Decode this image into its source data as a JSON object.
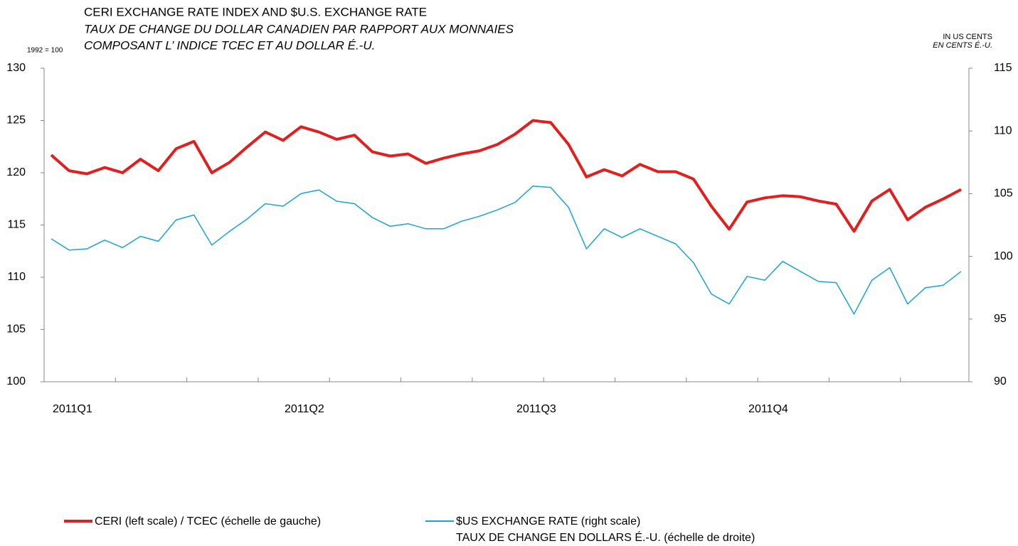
{
  "chart_data": {
    "type": "line",
    "title": "CERI EXCHANGE RATE INDEX AND $U.S. EXCHANGE RATE",
    "subtitle": [
      "TAUX DE CHANGE DU DOLLAR CANADIEN PAR RAPPORT AUX MONNAIES",
      "COMPOSANT L’ INDICE TCEC ET AU DOLLAR É.-U."
    ],
    "ylabel": "1992 = 100",
    "y2label": [
      "IN US CENTS",
      "EN CENTS É.-U."
    ],
    "categories": [
      "2011Q1",
      null,
      null,
      null,
      null,
      null,
      null,
      null,
      null,
      null,
      null,
      null,
      null,
      "2011Q2",
      null,
      null,
      null,
      null,
      null,
      null,
      null,
      null,
      null,
      null,
      null,
      null,
      "2011Q3",
      null,
      null,
      null,
      null,
      null,
      null,
      null,
      null,
      null,
      null,
      null,
      null,
      "2011Q4",
      null,
      null,
      null,
      null,
      null,
      null,
      null,
      null,
      null,
      null,
      null,
      null
    ],
    "series": [
      {
        "name": "CERI (left scale) / TCEC (échelle de gauche)",
        "color": "#e0201f",
        "width": 4,
        "values": [
          121.7,
          120.2,
          119.9,
          120.5,
          120.0,
          121.3,
          120.2,
          122.3,
          123.0,
          120.0,
          121.0,
          122.5,
          123.9,
          123.1,
          124.4,
          123.9,
          123.2,
          123.6,
          122.0,
          121.6,
          121.8,
          120.9,
          121.4,
          121.8,
          122.1,
          122.7,
          123.7,
          125.0,
          124.8,
          122.7,
          119.6,
          120.3,
          119.7,
          120.8,
          120.1,
          120.1,
          119.4,
          116.8,
          114.6,
          117.2,
          117.6,
          117.8,
          117.7,
          117.3,
          117.0,
          114.4,
          117.3,
          118.4,
          115.5,
          116.7,
          117.5,
          118.4
        ]
      },
      {
        "name": "$US EXCHANGE RATE (right scale)\nTAUX DE CHANGE EN DOLLARS É.-U. (échelle de droite)",
        "color": "#1aa3d6",
        "width": 1.5,
        "axis": "y2",
        "values": [
          101.4,
          100.5,
          100.6,
          101.3,
          100.7,
          101.6,
          101.2,
          102.9,
          103.3,
          100.9,
          102.0,
          103.0,
          104.2,
          104.0,
          105.0,
          105.3,
          104.4,
          104.2,
          103.1,
          102.4,
          102.6,
          102.2,
          102.2,
          102.8,
          103.2,
          103.7,
          104.3,
          105.6,
          105.5,
          103.9,
          100.6,
          102.2,
          101.5,
          102.2,
          101.6,
          101.0,
          99.5,
          97.0,
          96.2,
          98.4,
          98.1,
          99.6,
          98.8,
          98.0,
          97.9,
          95.4,
          98.1,
          99.1,
          96.2,
          97.5,
          97.7,
          98.8
        ]
      }
    ],
    "ylim": [
      100,
      130
    ],
    "yticks": [
      100,
      105,
      110,
      115,
      120,
      125,
      130
    ],
    "y2lim": [
      90,
      115
    ],
    "y2ticks": [
      90,
      95,
      100,
      105,
      110,
      115
    ],
    "grid": false
  }
}
